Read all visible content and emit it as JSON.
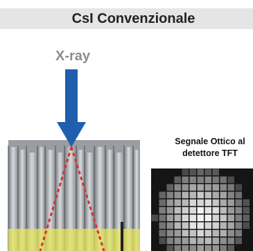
{
  "title": "CsI Convenzionale",
  "xray_label": "X-ray",
  "signal_label": {
    "line1": "Segnale Ottico al",
    "line2": "detettore TFT"
  },
  "colors": {
    "title_band": "#e5e5e5",
    "arrow": "#1f5fae",
    "light_cone": "#e03030",
    "scintillator_yellow": "#e6e65a",
    "pixel_bg": "#151515"
  },
  "icons": {
    "arrow": "down-arrow-icon"
  }
}
